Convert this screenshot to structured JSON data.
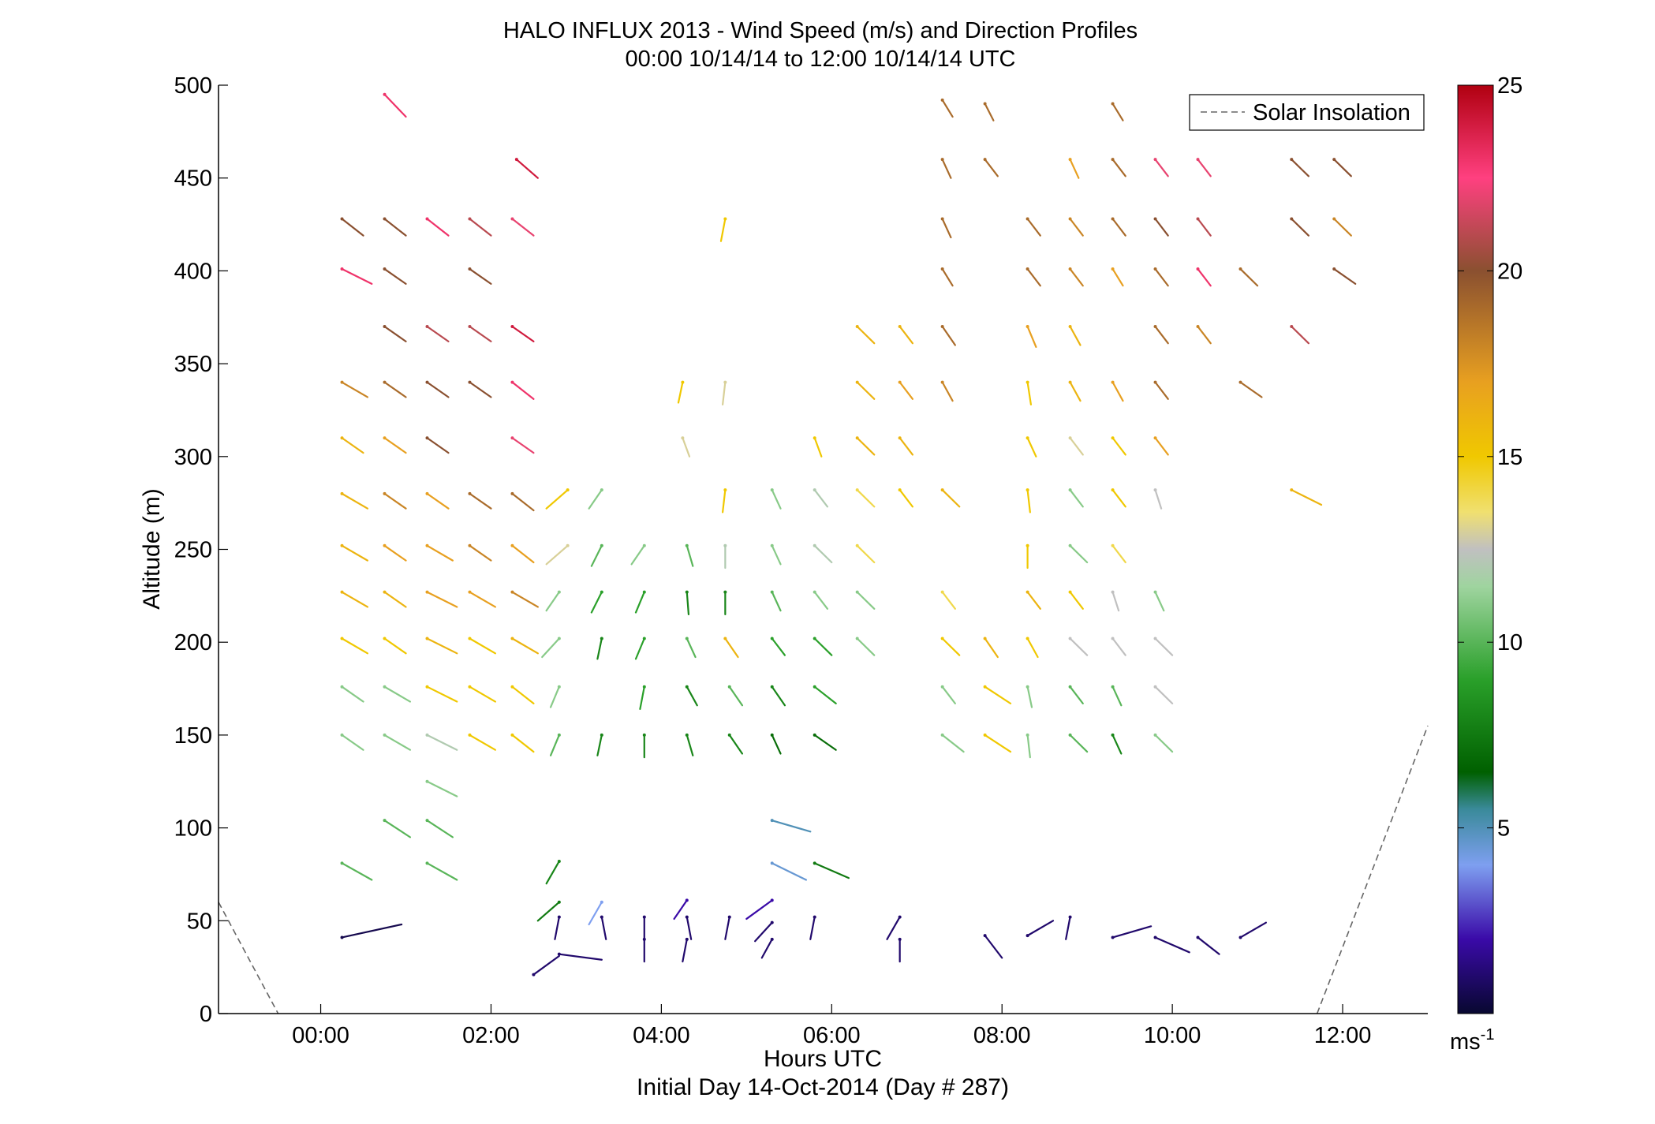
{
  "chart_data": {
    "type": "vector-field",
    "title": "HALO INFLUX 2013 - Wind Speed (m/s) and Direction Profiles",
    "subtitle": "00:00 10/14/14 to 12:00 10/14/14  UTC",
    "xlabel": "Hours UTC",
    "xlabel2": "Initial Day 14-Oct-2014 (Day # 287)",
    "ylabel": "Altitude (m)",
    "xlim": [
      -1.2,
      13.0
    ],
    "ylim": [
      0,
      500
    ],
    "x_ticks": [
      {
        "v": 0,
        "label": "00:00"
      },
      {
        "v": 2,
        "label": "02:00"
      },
      {
        "v": 4,
        "label": "04:00"
      },
      {
        "v": 6,
        "label": "06:00"
      },
      {
        "v": 8,
        "label": "08:00"
      },
      {
        "v": 10,
        "label": "10:00"
      },
      {
        "v": 12,
        "label": "12:00"
      }
    ],
    "y_ticks": [
      {
        "v": 0,
        "label": "0"
      },
      {
        "v": 50,
        "label": "50"
      },
      {
        "v": 100,
        "label": "100"
      },
      {
        "v": 150,
        "label": "150"
      },
      {
        "v": 200,
        "label": "200"
      },
      {
        "v": 250,
        "label": "250"
      },
      {
        "v": 300,
        "label": "300"
      },
      {
        "v": 350,
        "label": "350"
      },
      {
        "v": 400,
        "label": "400"
      },
      {
        "v": 450,
        "label": "450"
      },
      {
        "v": 500,
        "label": "500"
      }
    ],
    "colorbar": {
      "min": 0,
      "max": 25,
      "ticks": [
        {
          "v": 5,
          "label": "5"
        },
        {
          "v": 10,
          "label": "10"
        },
        {
          "v": 15,
          "label": "15"
        },
        {
          "v": 20,
          "label": "20"
        },
        {
          "v": 25,
          "label": "25"
        }
      ],
      "unit_base": "ms",
      "unit_exp": "-1"
    },
    "legend": {
      "label": "Solar Insolation",
      "placement": "top-right",
      "color": "#666666"
    },
    "solar_insolation": [
      [
        [
          -1.2,
          60
        ],
        [
          -0.5,
          0
        ]
      ],
      [
        [
          11.7,
          0
        ],
        [
          13.0,
          155
        ]
      ]
    ],
    "vectors_note": "each vector: [hour, altitude_m, dx_hours, dz_m, speed_ms]",
    "vectors": [
      [
        0.75,
        495,
        0.25,
        -12,
        23
      ],
      [
        2.3,
        460,
        0.25,
        -10,
        24
      ],
      [
        7.3,
        492,
        0.12,
        -9,
        19
      ],
      [
        7.8,
        490,
        0.1,
        -9,
        19
      ],
      [
        9.3,
        490,
        0.12,
        -9,
        19
      ],
      [
        7.3,
        460,
        0.1,
        -10,
        19
      ],
      [
        7.8,
        460,
        0.15,
        -9,
        19
      ],
      [
        8.8,
        460,
        0.1,
        -10,
        17
      ],
      [
        9.3,
        460,
        0.15,
        -9,
        19
      ],
      [
        9.8,
        460,
        0.15,
        -9,
        22
      ],
      [
        10.3,
        460,
        0.15,
        -9,
        22
      ],
      [
        11.4,
        460,
        0.2,
        -9,
        20
      ],
      [
        11.9,
        460,
        0.2,
        -9,
        20
      ],
      [
        0.25,
        428,
        0.25,
        -9,
        20
      ],
      [
        0.75,
        428,
        0.25,
        -9,
        20
      ],
      [
        1.25,
        428,
        0.25,
        -9,
        23
      ],
      [
        1.75,
        428,
        0.25,
        -9,
        21
      ],
      [
        2.25,
        428,
        0.25,
        -9,
        22
      ],
      [
        4.75,
        428,
        -0.05,
        -12,
        15
      ],
      [
        7.3,
        428,
        0.1,
        -10,
        19
      ],
      [
        8.3,
        428,
        0.15,
        -9,
        19
      ],
      [
        8.8,
        428,
        0.15,
        -9,
        18
      ],
      [
        9.3,
        428,
        0.15,
        -9,
        19
      ],
      [
        9.8,
        428,
        0.15,
        -9,
        20
      ],
      [
        10.3,
        428,
        0.15,
        -9,
        21
      ],
      [
        11.4,
        428,
        0.2,
        -9,
        20
      ],
      [
        11.9,
        428,
        0.2,
        -9,
        18
      ],
      [
        0.25,
        401,
        0.35,
        -8,
        23
      ],
      [
        0.75,
        401,
        0.25,
        -8,
        20
      ],
      [
        1.75,
        401,
        0.25,
        -8,
        20
      ],
      [
        7.3,
        401,
        0.12,
        -9,
        19
      ],
      [
        8.3,
        401,
        0.15,
        -9,
        19
      ],
      [
        8.8,
        401,
        0.15,
        -9,
        18
      ],
      [
        9.3,
        401,
        0.12,
        -9,
        17
      ],
      [
        9.8,
        401,
        0.15,
        -9,
        19
      ],
      [
        10.3,
        401,
        0.15,
        -9,
        23
      ],
      [
        10.8,
        401,
        0.2,
        -9,
        19
      ],
      [
        11.9,
        401,
        0.25,
        -8,
        20
      ],
      [
        0.75,
        370,
        0.25,
        -8,
        20
      ],
      [
        1.25,
        370,
        0.25,
        -8,
        21
      ],
      [
        1.75,
        370,
        0.25,
        -8,
        21
      ],
      [
        2.25,
        370,
        0.25,
        -8,
        24
      ],
      [
        6.3,
        370,
        0.2,
        -9,
        16
      ],
      [
        6.8,
        370,
        0.15,
        -9,
        16
      ],
      [
        7.3,
        370,
        0.15,
        -10,
        19
      ],
      [
        8.3,
        370,
        0.1,
        -11,
        17
      ],
      [
        8.8,
        370,
        0.12,
        -10,
        16
      ],
      [
        9.8,
        370,
        0.15,
        -9,
        19
      ],
      [
        10.3,
        370,
        0.15,
        -9,
        18
      ],
      [
        11.4,
        370,
        0.2,
        -9,
        21
      ],
      [
        0.25,
        340,
        0.3,
        -8,
        18
      ],
      [
        0.75,
        340,
        0.25,
        -8,
        19
      ],
      [
        1.25,
        340,
        0.25,
        -8,
        20
      ],
      [
        1.75,
        340,
        0.25,
        -8,
        20
      ],
      [
        2.25,
        340,
        0.25,
        -9,
        23
      ],
      [
        4.25,
        340,
        -0.05,
        -11,
        15
      ],
      [
        4.75,
        340,
        -0.03,
        -12,
        13
      ],
      [
        6.3,
        340,
        0.2,
        -9,
        16
      ],
      [
        6.8,
        340,
        0.15,
        -9,
        17
      ],
      [
        7.3,
        340,
        0.12,
        -10,
        18
      ],
      [
        8.3,
        340,
        0.04,
        -12,
        15
      ],
      [
        8.8,
        340,
        0.12,
        -10,
        16
      ],
      [
        9.3,
        340,
        0.12,
        -10,
        17
      ],
      [
        9.8,
        340,
        0.15,
        -9,
        19
      ],
      [
        10.8,
        340,
        0.25,
        -8,
        19
      ],
      [
        0.25,
        310,
        0.25,
        -8,
        16
      ],
      [
        0.75,
        310,
        0.25,
        -8,
        17
      ],
      [
        1.25,
        310,
        0.25,
        -8,
        20
      ],
      [
        2.25,
        310,
        0.25,
        -8,
        22
      ],
      [
        4.25,
        310,
        0.08,
        -10,
        13
      ],
      [
        5.8,
        310,
        0.08,
        -10,
        15
      ],
      [
        6.3,
        310,
        0.2,
        -9,
        16
      ],
      [
        6.8,
        310,
        0.15,
        -9,
        16
      ],
      [
        8.3,
        310,
        0.1,
        -10,
        15
      ],
      [
        8.8,
        310,
        0.15,
        -9,
        13
      ],
      [
        9.3,
        310,
        0.15,
        -9,
        15
      ],
      [
        9.8,
        310,
        0.15,
        -9,
        17
      ],
      [
        0.25,
        280,
        0.3,
        -8,
        16
      ],
      [
        0.75,
        280,
        0.25,
        -8,
        18
      ],
      [
        1.25,
        280,
        0.25,
        -8,
        17
      ],
      [
        1.75,
        280,
        0.25,
        -8,
        19
      ],
      [
        2.25,
        280,
        0.25,
        -9,
        19
      ],
      [
        2.9,
        282,
        -0.25,
        -10,
        15
      ],
      [
        3.3,
        282,
        -0.15,
        -10,
        11
      ],
      [
        4.75,
        282,
        -0.03,
        -12,
        15
      ],
      [
        5.3,
        282,
        0.1,
        -10,
        11
      ],
      [
        5.8,
        282,
        0.15,
        -9,
        12
      ],
      [
        6.3,
        282,
        0.2,
        -9,
        14
      ],
      [
        6.8,
        282,
        0.15,
        -9,
        15
      ],
      [
        7.3,
        282,
        0.2,
        -9,
        16
      ],
      [
        8.3,
        282,
        0.03,
        -12,
        15
      ],
      [
        8.8,
        282,
        0.15,
        -9,
        11
      ],
      [
        9.3,
        282,
        0.15,
        -9,
        15
      ],
      [
        9.8,
        282,
        0.07,
        -10,
        12.5
      ],
      [
        11.4,
        282,
        0.35,
        -8,
        16
      ],
      [
        0.25,
        252,
        0.3,
        -8,
        16
      ],
      [
        0.75,
        252,
        0.25,
        -8,
        17
      ],
      [
        1.25,
        252,
        0.3,
        -8,
        17
      ],
      [
        1.75,
        252,
        0.25,
        -8,
        18
      ],
      [
        2.25,
        252,
        0.25,
        -9,
        17
      ],
      [
        2.9,
        252,
        -0.25,
        -10,
        13
      ],
      [
        3.3,
        252,
        -0.12,
        -11,
        10
      ],
      [
        3.8,
        252,
        -0.15,
        -10,
        11
      ],
      [
        4.3,
        252,
        0.07,
        -11,
        10
      ],
      [
        4.75,
        252,
        0,
        -12,
        12
      ],
      [
        5.3,
        252,
        0.1,
        -10,
        11
      ],
      [
        5.8,
        252,
        0.2,
        -9,
        12
      ],
      [
        6.3,
        252,
        0.2,
        -9,
        14
      ],
      [
        8.3,
        252,
        0,
        -12,
        15
      ],
      [
        8.8,
        252,
        0.2,
        -9,
        11
      ],
      [
        9.3,
        252,
        0.15,
        -9,
        14
      ],
      [
        0.25,
        227,
        0.3,
        -8,
        16
      ],
      [
        0.75,
        227,
        0.25,
        -8,
        16
      ],
      [
        1.25,
        227,
        0.35,
        -8,
        17
      ],
      [
        1.75,
        227,
        0.3,
        -8,
        17
      ],
      [
        2.25,
        227,
        0.3,
        -8,
        18
      ],
      [
        2.8,
        227,
        -0.15,
        -10,
        11
      ],
      [
        3.3,
        227,
        -0.12,
        -11,
        9
      ],
      [
        3.8,
        227,
        -0.1,
        -11,
        9
      ],
      [
        4.3,
        227,
        0.02,
        -12,
        8
      ],
      [
        4.75,
        227,
        0,
        -12,
        8
      ],
      [
        5.3,
        227,
        0.1,
        -10,
        10
      ],
      [
        5.8,
        227,
        0.15,
        -9,
        11
      ],
      [
        6.3,
        227,
        0.2,
        -9,
        11
      ],
      [
        7.3,
        227,
        0.15,
        -9,
        14
      ],
      [
        8.3,
        227,
        0.15,
        -9,
        16
      ],
      [
        8.8,
        227,
        0.15,
        -9,
        15
      ],
      [
        9.3,
        227,
        0.07,
        -10,
        12.5
      ],
      [
        9.8,
        227,
        0.1,
        -10,
        11
      ],
      [
        0.25,
        202,
        0.3,
        -8,
        15
      ],
      [
        0.75,
        202,
        0.25,
        -8,
        15
      ],
      [
        1.25,
        202,
        0.35,
        -8,
        16
      ],
      [
        1.75,
        202,
        0.3,
        -8,
        15
      ],
      [
        2.25,
        202,
        0.3,
        -8,
        16
      ],
      [
        2.8,
        202,
        -0.2,
        -10,
        11
      ],
      [
        3.3,
        202,
        -0.05,
        -11,
        8
      ],
      [
        3.8,
        202,
        -0.1,
        -11,
        9
      ],
      [
        4.3,
        202,
        0.1,
        -10,
        10
      ],
      [
        4.75,
        202,
        0.15,
        -10,
        16
      ],
      [
        5.3,
        202,
        0.15,
        -9,
        9
      ],
      [
        5.8,
        202,
        0.2,
        -9,
        9
      ],
      [
        6.3,
        202,
        0.2,
        -9,
        11
      ],
      [
        7.3,
        202,
        0.2,
        -9,
        15
      ],
      [
        7.8,
        202,
        0.15,
        -10,
        16
      ],
      [
        8.3,
        202,
        0.12,
        -10,
        15
      ],
      [
        8.8,
        202,
        0.2,
        -9,
        12.5
      ],
      [
        9.3,
        202,
        0.15,
        -9,
        12.5
      ],
      [
        9.8,
        202,
        0.2,
        -9,
        12.5
      ],
      [
        0.25,
        176,
        0.25,
        -8,
        11
      ],
      [
        0.75,
        176,
        0.3,
        -8,
        11
      ],
      [
        1.25,
        176,
        0.35,
        -8,
        15
      ],
      [
        1.75,
        176,
        0.3,
        -8,
        15
      ],
      [
        2.25,
        176,
        0.25,
        -9,
        15
      ],
      [
        2.8,
        176,
        -0.1,
        -11,
        11
      ],
      [
        3.8,
        176,
        -0.05,
        -12,
        9
      ],
      [
        4.3,
        176,
        0.12,
        -10,
        8
      ],
      [
        4.8,
        176,
        0.15,
        -10,
        10
      ],
      [
        5.3,
        176,
        0.15,
        -10,
        8
      ],
      [
        5.8,
        176,
        0.25,
        -9,
        9
      ],
      [
        7.3,
        176,
        0.15,
        -9,
        11
      ],
      [
        7.8,
        176,
        0.3,
        -9,
        15
      ],
      [
        8.3,
        176,
        0.05,
        -11,
        11
      ],
      [
        8.8,
        176,
        0.15,
        -9,
        10
      ],
      [
        9.3,
        176,
        0.1,
        -10,
        10
      ],
      [
        9.8,
        176,
        0.2,
        -9,
        12.5
      ],
      [
        0.25,
        150,
        0.25,
        -8,
        11
      ],
      [
        0.75,
        150,
        0.3,
        -8,
        11
      ],
      [
        1.25,
        150,
        0.35,
        -8,
        12
      ],
      [
        1.75,
        150,
        0.3,
        -8,
        15
      ],
      [
        2.25,
        150,
        0.25,
        -9,
        15
      ],
      [
        2.8,
        150,
        -0.1,
        -11,
        10
      ],
      [
        3.3,
        150,
        -0.05,
        -11,
        8
      ],
      [
        3.8,
        150,
        0,
        -12,
        8
      ],
      [
        4.3,
        150,
        0.07,
        -11,
        8
      ],
      [
        4.8,
        150,
        0.15,
        -10,
        8
      ],
      [
        5.3,
        150,
        0.1,
        -10,
        7
      ],
      [
        5.8,
        150,
        0.25,
        -8,
        7
      ],
      [
        7.3,
        150,
        0.25,
        -9,
        11
      ],
      [
        7.8,
        150,
        0.3,
        -9,
        15
      ],
      [
        8.3,
        150,
        0.03,
        -12,
        11
      ],
      [
        8.8,
        150,
        0.2,
        -9,
        10
      ],
      [
        9.3,
        150,
        0.1,
        -10,
        8
      ],
      [
        9.8,
        150,
        0.2,
        -9,
        11
      ],
      [
        1.25,
        125,
        0.35,
        -8,
        11
      ],
      [
        0.75,
        104,
        0.3,
        -9,
        10
      ],
      [
        1.25,
        104,
        0.3,
        -9,
        10
      ],
      [
        5.3,
        104,
        0.45,
        -6,
        5
      ],
      [
        0.25,
        81,
        0.35,
        -9,
        10
      ],
      [
        1.25,
        81,
        0.35,
        -9,
        10
      ],
      [
        2.8,
        82,
        -0.15,
        -12,
        8
      ],
      [
        5.3,
        81,
        0.4,
        -9,
        4.5
      ],
      [
        5.8,
        81,
        0.4,
        -8,
        7.5
      ],
      [
        0.25,
        41,
        0.7,
        7,
        0.5
      ],
      [
        2.8,
        60,
        -0.25,
        -10,
        7.5
      ],
      [
        3.3,
        60,
        -0.15,
        -12,
        4
      ],
      [
        4.3,
        61,
        -0.15,
        -10,
        2
      ],
      [
        5.3,
        61,
        -0.3,
        -10,
        2
      ],
      [
        2.8,
        52,
        -0.05,
        -12,
        1
      ],
      [
        3.3,
        52,
        0.05,
        -12,
        1
      ],
      [
        3.8,
        52,
        0,
        -12,
        1
      ],
      [
        4.3,
        52,
        0.05,
        -12,
        1
      ],
      [
        4.8,
        52,
        -0.05,
        -12,
        1
      ],
      [
        5.3,
        49,
        -0.2,
        -10,
        1
      ],
      [
        5.8,
        52,
        -0.05,
        -12,
        1
      ],
      [
        6.8,
        52,
        -0.15,
        -12,
        1
      ],
      [
        7.8,
        42,
        0.2,
        -12,
        1
      ],
      [
        8.3,
        42,
        0.3,
        8,
        1
      ],
      [
        8.8,
        52,
        -0.05,
        -12,
        1
      ],
      [
        9.3,
        41,
        0.45,
        6,
        1
      ],
      [
        9.8,
        41,
        0.4,
        -8,
        1
      ],
      [
        10.3,
        41,
        0.25,
        -9,
        1
      ],
      [
        10.8,
        41,
        0.3,
        8,
        1
      ],
      [
        2.5,
        21,
        0.3,
        10,
        1
      ],
      [
        2.8,
        32,
        0.5,
        -3,
        1
      ],
      [
        3.8,
        40,
        0,
        -12,
        1
      ],
      [
        4.3,
        40,
        -0.05,
        -12,
        1
      ],
      [
        5.3,
        40,
        -0.12,
        -10,
        1
      ],
      [
        6.8,
        40,
        0,
        -12,
        1
      ]
    ]
  }
}
